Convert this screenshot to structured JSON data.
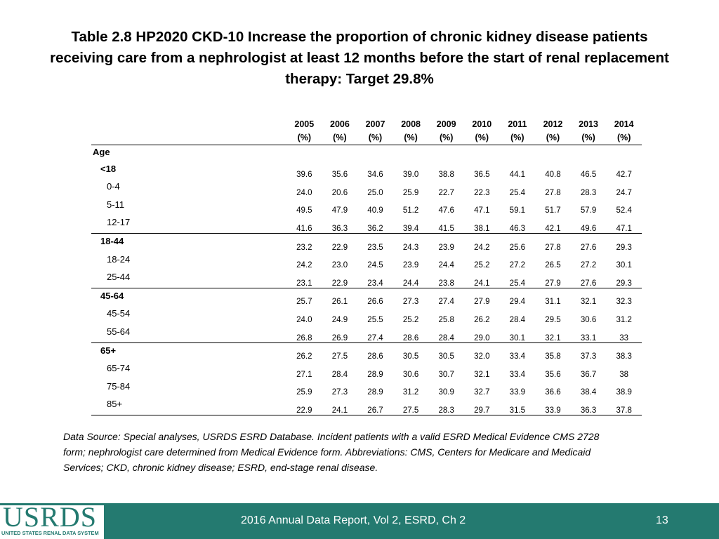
{
  "title": {
    "line1": "Table 2.8  HP2020 CKD-10 Increase the proportion of chronic kidney disease patients",
    "line2": "receiving care from a nephrologist at least 12 months before the start of renal replacement",
    "line3": "therapy: Target 29.8%"
  },
  "table": {
    "years": [
      "2005",
      "2006",
      "2007",
      "2008",
      "2009",
      "2010",
      "2011",
      "2012",
      "2013",
      "2014"
    ],
    "unit": "(%)",
    "section_label": "Age",
    "rows": [
      {
        "label": "<18",
        "type": "group",
        "values": [
          "39.6",
          "35.6",
          "34.6",
          "39.0",
          "38.8",
          "36.5",
          "44.1",
          "40.8",
          "46.5",
          "42.7"
        ]
      },
      {
        "label": "0-4",
        "type": "sub",
        "values": [
          "24.0",
          "20.6",
          "25.0",
          "25.9",
          "22.7",
          "22.3",
          "25.4",
          "27.8",
          "28.3",
          "24.7"
        ]
      },
      {
        "label": "5-11",
        "type": "sub",
        "values": [
          "49.5",
          "47.9",
          "40.9",
          "51.2",
          "47.6",
          "47.1",
          "59.1",
          "51.7",
          "57.9",
          "52.4"
        ]
      },
      {
        "label": "12-17",
        "type": "sub",
        "values": [
          "41.6",
          "36.3",
          "36.2",
          "39.4",
          "41.5",
          "38.1",
          "46.3",
          "42.1",
          "49.6",
          "47.1"
        ]
      },
      {
        "label": "18-44",
        "type": "group",
        "values": [
          "23.2",
          "22.9",
          "23.5",
          "24.3",
          "23.9",
          "24.2",
          "25.6",
          "27.8",
          "27.6",
          "29.3"
        ]
      },
      {
        "label": "18-24",
        "type": "sub",
        "values": [
          "24.2",
          "23.0",
          "24.5",
          "23.9",
          "24.4",
          "25.2",
          "27.2",
          "26.5",
          "27.2",
          "30.1"
        ]
      },
      {
        "label": "25-44",
        "type": "sub",
        "values": [
          "23.1",
          "22.9",
          "23.4",
          "24.4",
          "23.8",
          "24.1",
          "25.4",
          "27.9",
          "27.6",
          "29.3"
        ]
      },
      {
        "label": "45-64",
        "type": "group",
        "values": [
          "25.7",
          "26.1",
          "26.6",
          "27.3",
          "27.4",
          "27.9",
          "29.4",
          "31.1",
          "32.1",
          "32.3"
        ]
      },
      {
        "label": "45-54",
        "type": "sub",
        "values": [
          "24.0",
          "24.9",
          "25.5",
          "25.2",
          "25.8",
          "26.2",
          "28.4",
          "29.5",
          "30.6",
          "31.2"
        ]
      },
      {
        "label": "55-64",
        "type": "sub",
        "values": [
          "26.8",
          "26.9",
          "27.4",
          "28.6",
          "28.4",
          "29.0",
          "30.1",
          "32.1",
          "33.1",
          "33"
        ]
      },
      {
        "label": "65+",
        "type": "group",
        "values": [
          "26.2",
          "27.5",
          "28.6",
          "30.5",
          "30.5",
          "32.0",
          "33.4",
          "35.8",
          "37.3",
          "38.3"
        ]
      },
      {
        "label": "65-74",
        "type": "sub",
        "values": [
          "27.1",
          "28.4",
          "28.9",
          "30.6",
          "30.7",
          "32.1",
          "33.4",
          "35.6",
          "36.7",
          "38"
        ]
      },
      {
        "label": "75-84",
        "type": "sub",
        "values": [
          "25.9",
          "27.3",
          "28.9",
          "31.2",
          "30.9",
          "32.7",
          "33.9",
          "36.6",
          "38.4",
          "38.9"
        ]
      },
      {
        "label": "85+",
        "type": "sub",
        "values": [
          "22.9",
          "24.1",
          "26.7",
          "27.5",
          "28.3",
          "29.7",
          "31.5",
          "33.9",
          "36.3",
          "37.8"
        ]
      }
    ]
  },
  "note": {
    "line1": "Data Source: Special analyses, USRDS ESRD Database. Incident patients with a valid ESRD Medical Evidence CMS 2728",
    "line2": "form; nephrologist care determined from Medical Evidence form. Abbreviations:  CMS, Centers for Medicare and Medicaid",
    "line3": "Services; CKD, chronic kidney disease; ESRD, end-stage renal disease."
  },
  "footer": {
    "logo_main": "USRDS",
    "logo_sub": "UNITED STATES RENAL DATA SYSTEM",
    "report": "2016 Annual Data Report, Vol 2, ESRD, Ch 2",
    "page_number": "13"
  },
  "colors": {
    "footer_bg": "#247a70",
    "logo": "#247a70"
  }
}
